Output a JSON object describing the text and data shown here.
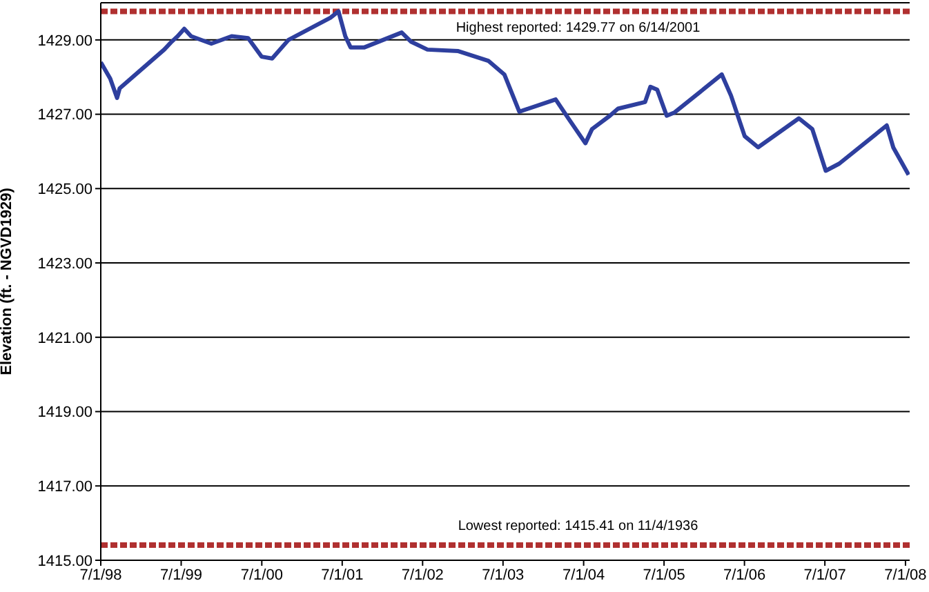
{
  "chart_data": {
    "type": "line",
    "ylabel": "Elevation (ft. - NGVD1929)",
    "x": [
      "1998-07-01",
      "1998-08-13",
      "1998-09-13",
      "1998-09-25",
      "1999-04-15",
      "1999-05-15",
      "1999-06-15",
      "1999-07-15",
      "1999-08-15",
      "1999-11-15",
      "2000-02-15",
      "2000-04-30",
      "2000-06-30",
      "2000-08-17",
      "2000-10-30",
      "2001-05-09",
      "2001-06-14",
      "2001-07-15",
      "2001-08-08",
      "2001-10-10",
      "2002-03-28",
      "2002-05-10",
      "2002-07-23",
      "2002-12-10",
      "2003-04-25",
      "2003-07-07",
      "2003-09-13",
      "2004-02-25",
      "2004-04-27",
      "2004-07-09",
      "2004-08-08",
      "2004-10-28",
      "2004-12-04",
      "2005-04-06",
      "2005-04-30",
      "2005-05-31",
      "2005-07-13",
      "2005-08-18",
      "2006-03-20",
      "2006-05-01",
      "2006-07-02",
      "2006-09-01",
      "2007-03-05",
      "2007-05-05",
      "2007-07-05",
      "2007-09-04",
      "2008-04-07",
      "2008-05-07",
      "2008-07-15"
    ],
    "series": [
      {
        "color": "#2e3f9e",
        "values": [
          1428.4,
          1427.96,
          1427.44,
          1427.7,
          1428.74,
          1428.93,
          1429.1,
          1429.3,
          1429.1,
          1428.9,
          1429.1,
          1429.05,
          1428.55,
          1428.5,
          1429.0,
          1429.6,
          1429.77,
          1429.1,
          1428.8,
          1428.8,
          1429.2,
          1428.95,
          1428.74,
          1428.7,
          1428.44,
          1428.07,
          1427.07,
          1427.4,
          1426.85,
          1426.22,
          1426.6,
          1426.96,
          1427.15,
          1427.33,
          1427.74,
          1427.66,
          1426.96,
          1427.05,
          1428.07,
          1427.5,
          1426.41,
          1426.11,
          1426.89,
          1426.6,
          1425.48,
          1425.67,
          1426.7,
          1426.1,
          1425.37
        ]
      }
    ],
    "xlim": [
      "1998-07-01",
      "2008-07-20"
    ],
    "xticks": [
      {
        "value": "1998-07-01",
        "label": "7/1/98"
      },
      {
        "value": "1999-07-01",
        "label": "7/1/99"
      },
      {
        "value": "2000-07-01",
        "label": "7/1/00"
      },
      {
        "value": "2001-07-01",
        "label": "7/1/01"
      },
      {
        "value": "2002-07-01",
        "label": "7/1/02"
      },
      {
        "value": "2003-07-01",
        "label": "7/1/03"
      },
      {
        "value": "2004-07-01",
        "label": "7/1/04"
      },
      {
        "value": "2005-07-01",
        "label": "7/1/05"
      },
      {
        "value": "2006-07-01",
        "label": "7/1/06"
      },
      {
        "value": "2007-07-01",
        "label": "7/1/07"
      },
      {
        "value": "2008-07-01",
        "label": "7/1/08"
      }
    ],
    "ylim": [
      1415,
      1430
    ],
    "yticks": [
      {
        "value": 1415,
        "label": "1415.00"
      },
      {
        "value": 1417,
        "label": "1417.00"
      },
      {
        "value": 1419,
        "label": "1419.00"
      },
      {
        "value": 1421,
        "label": "1421.00"
      },
      {
        "value": 1423,
        "label": "1423.00"
      },
      {
        "value": 1425,
        "label": "1425.00"
      },
      {
        "value": 1427,
        "label": "1427.00"
      },
      {
        "value": 1429,
        "label": "1429.00"
      }
    ],
    "grid": "y",
    "marker": "none",
    "line_style": "solid",
    "legend": false,
    "ref_lines": [
      {
        "axis": "y",
        "value": 1429.77,
        "label": "Highest reported:  1429.77 on 6/14/2001",
        "color": "#b03030",
        "line_style": "dashed"
      },
      {
        "axis": "y",
        "value": 1415.41,
        "label": "Lowest reported:  1415.41 on 11/4/1936",
        "color": "#b03030",
        "line_style": "dashed"
      }
    ]
  }
}
